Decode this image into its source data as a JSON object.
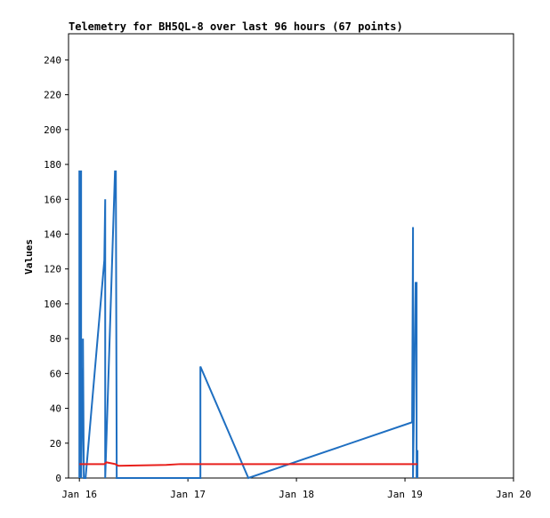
{
  "chart_data": {
    "type": "line",
    "title": "Telemetry for BH5QL-8 over last 96 hours (67 points)",
    "y_label": "Values",
    "xlim": [
      -0.1,
      4
    ],
    "xticks": [
      {
        "value": 0,
        "label": "Jan 16"
      },
      {
        "value": 1,
        "label": "Jan 17"
      },
      {
        "value": 2,
        "label": "Jan 18"
      },
      {
        "value": 3,
        "label": "Jan 19"
      },
      {
        "value": 4,
        "label": "Jan 20"
      }
    ],
    "ylim": [
      0,
      255
    ],
    "yticks": [
      0,
      20,
      40,
      60,
      80,
      100,
      120,
      140,
      160,
      180,
      200,
      220,
      240
    ],
    "grid": false,
    "series": [
      {
        "name": "blue",
        "color": "#1f6fc1",
        "x": [
          0,
          0,
          0.016,
          0.016,
          0.033,
          0.033,
          0.041,
          0.057,
          0.23,
          0.238,
          0.238,
          0.328,
          0.336,
          0.344,
          1.115,
          1.115,
          1.557,
          3.066,
          3.074,
          3.074,
          3.098,
          3.107,
          3.107,
          3.115,
          3.115
        ],
        "values": [
          0,
          176,
          176,
          0,
          64,
          80,
          0,
          0,
          125,
          160,
          0,
          176,
          176,
          0,
          0,
          64,
          0,
          32,
          144,
          0,
          112,
          112,
          0,
          16,
          0
        ]
      },
      {
        "name": "red",
        "color": "#e8201c",
        "x": [
          0,
          0.23,
          0.25,
          0.33,
          0.36,
          0.8,
          0.93,
          3.115
        ],
        "values": [
          8,
          8,
          9,
          8,
          7,
          7.5,
          8,
          8
        ]
      }
    ]
  }
}
